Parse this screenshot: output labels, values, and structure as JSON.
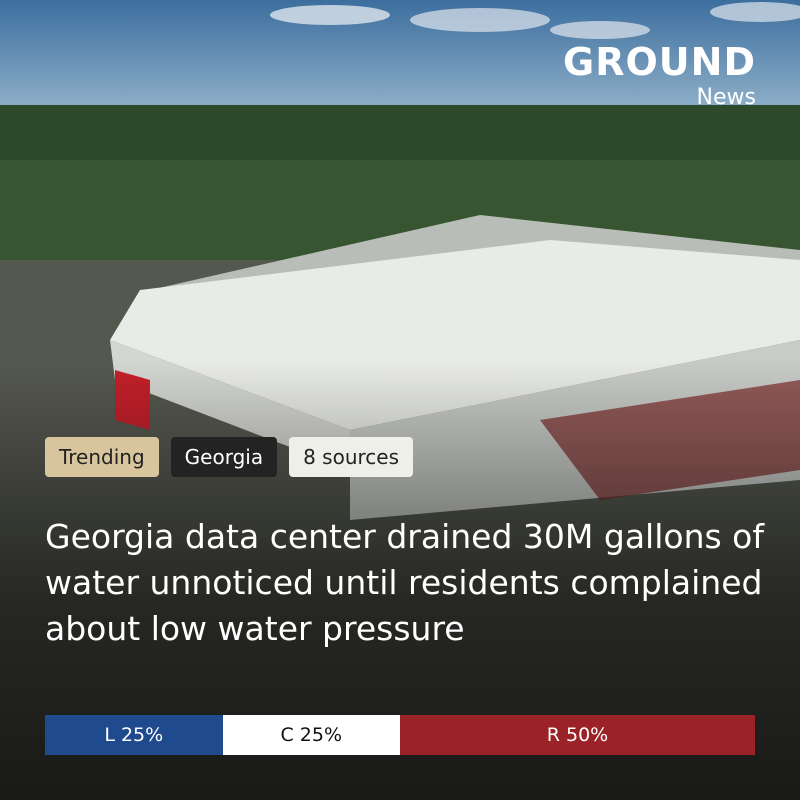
{
  "brand": {
    "name": "GROUND",
    "sub": "News"
  },
  "tags": [
    "Trending",
    "Georgia",
    "8 sources"
  ],
  "headline": "Georgia data center drained 30M gallons of water unnoticed until residents complained about low water pressure",
  "bias": [
    {
      "label": "L 25%",
      "value": 25,
      "color": "#1f4a8e"
    },
    {
      "label": "C 25%",
      "value": 25,
      "color": "#ffffff"
    },
    {
      "label": "R 50%",
      "value": 50,
      "color": "#9b2327"
    }
  ]
}
